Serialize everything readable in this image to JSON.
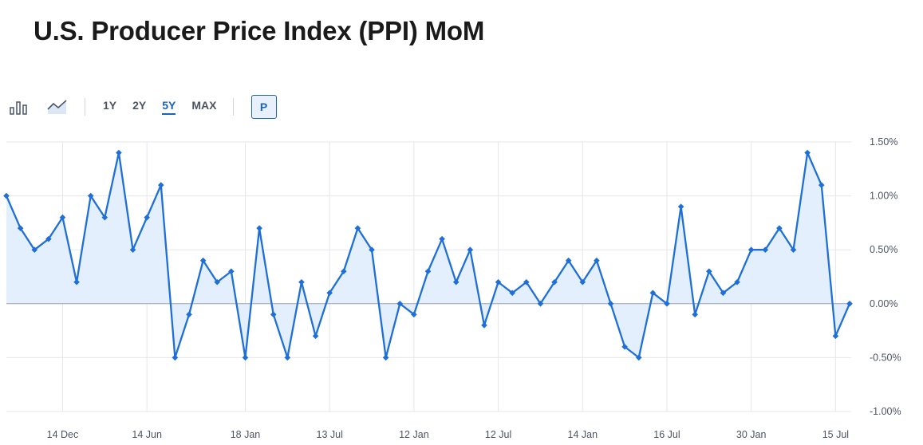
{
  "page": {
    "title": "U.S. Producer Price Index (PPI) MoM"
  },
  "toolbar": {
    "chart_types": [
      {
        "icon": "bar-chart-icon"
      },
      {
        "icon": "area-chart-icon"
      }
    ],
    "ranges": [
      "1Y",
      "2Y",
      "5Y",
      "MAX"
    ],
    "active_range": "5Y",
    "p_label": "P"
  },
  "colors": {
    "line": "#1f6fd8",
    "area": "#e3effc",
    "grid": "#e5e7eb",
    "active": "#1c63b8"
  },
  "chart_data": {
    "type": "area",
    "title": "U.S. Producer Price Index (PPI) MoM",
    "ylabel": "",
    "xlabel": "",
    "ylim": [
      -1.0,
      1.5
    ],
    "yticks": [
      1.5,
      1.0,
      0.5,
      0.0,
      -0.5,
      -1.0
    ],
    "ytick_labels": [
      "1.50%",
      "1.00%",
      "0.50%",
      "0.00%",
      "-0.50%",
      "-1.00%"
    ],
    "y_axis_side": "right",
    "grid": true,
    "xtick_labels": [
      "14 Dec",
      "14 Jun",
      "18 Jan",
      "13 Jul",
      "12 Jan",
      "12 Jul",
      "14 Jan",
      "16 Jul",
      "30 Jan",
      "15 Jul"
    ],
    "xtick_point_index": [
      4,
      10,
      17,
      23,
      29,
      35,
      41,
      47,
      53,
      59
    ],
    "series": [
      {
        "values": [
          1.0,
          0.7,
          0.5,
          0.6,
          0.8,
          0.2,
          1.0,
          0.8,
          1.4,
          0.5,
          0.8,
          1.1,
          -0.5,
          -0.1,
          0.4,
          0.2,
          0.3,
          -0.5,
          0.7,
          -0.1,
          -0.5,
          0.2,
          -0.3,
          0.1,
          0.3,
          0.7,
          0.5,
          -0.5,
          0.0,
          -0.1,
          0.3,
          0.6,
          0.2,
          0.5,
          -0.2,
          0.2,
          0.1,
          0.2,
          0.0,
          0.2,
          0.4,
          0.2,
          0.4,
          0.0,
          -0.4,
          -0.5,
          0.1,
          0.0,
          0.9,
          -0.1,
          0.3,
          0.1,
          0.2,
          0.5,
          0.5,
          0.7,
          0.5,
          1.4,
          1.1,
          -0.3,
          0.0
        ]
      }
    ]
  }
}
